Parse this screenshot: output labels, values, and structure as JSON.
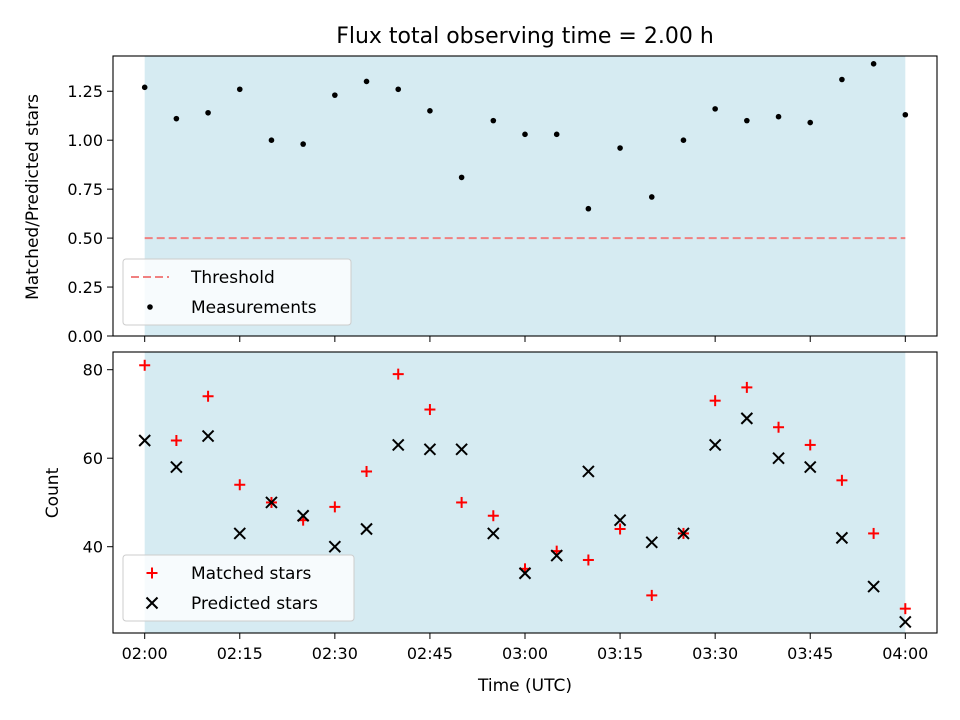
{
  "chart_data": [
    {
      "type": "scatter",
      "title": "Flux total observing time = 2.00 h",
      "xlabel": "",
      "ylabel": "Matched/Predicted stars",
      "ylim": [
        0,
        1.43
      ],
      "yticks": [
        0.0,
        0.25,
        0.5,
        0.75,
        1.0,
        1.25
      ],
      "ytick_labels": [
        "0.00",
        "0.25",
        "0.50",
        "0.75",
        "1.00",
        "1.25"
      ],
      "shaded_region": {
        "x_start": "02:00",
        "x_end": "04:00",
        "color": "#add8e6"
      },
      "threshold": {
        "name": "Threshold",
        "value": 0.5,
        "color": "#f08080",
        "style": "dashed"
      },
      "series": [
        {
          "name": "Measurements",
          "marker": "dot",
          "color": "#000000",
          "x": [
            "02:00",
            "02:05",
            "02:10",
            "02:15",
            "02:20",
            "02:25",
            "02:30",
            "02:35",
            "02:40",
            "02:45",
            "02:50",
            "02:55",
            "03:00",
            "03:05",
            "03:10",
            "03:15",
            "03:20",
            "03:25",
            "03:30",
            "03:35",
            "03:40",
            "03:45",
            "03:50",
            "03:55",
            "04:00"
          ],
          "values": [
            1.27,
            1.11,
            1.14,
            1.26,
            1.0,
            0.98,
            1.23,
            1.3,
            1.26,
            1.15,
            0.81,
            1.1,
            1.03,
            1.03,
            0.65,
            0.96,
            0.71,
            1.0,
            1.16,
            1.1,
            1.12,
            1.09,
            1.31,
            1.39,
            1.13
          ]
        }
      ],
      "legend": {
        "placement": "lower-left",
        "entries": [
          "Threshold",
          "Measurements"
        ]
      },
      "grid": false
    },
    {
      "type": "scatter",
      "title": "",
      "xlabel": "Time (UTC)",
      "ylabel": "Count",
      "ylim": [
        20.5,
        84
      ],
      "yticks": [
        40,
        60,
        80
      ],
      "ytick_labels": [
        "40",
        "60",
        "80"
      ],
      "xticks": [
        "02:00",
        "02:15",
        "02:30",
        "02:45",
        "03:00",
        "03:15",
        "03:30",
        "03:45",
        "04:00"
      ],
      "shaded_region": {
        "x_start": "02:00",
        "x_end": "04:00",
        "color": "#add8e6"
      },
      "x": [
        "02:00",
        "02:05",
        "02:10",
        "02:15",
        "02:20",
        "02:25",
        "02:30",
        "02:35",
        "02:40",
        "02:45",
        "02:50",
        "02:55",
        "03:00",
        "03:05",
        "03:10",
        "03:15",
        "03:20",
        "03:25",
        "03:30",
        "03:35",
        "03:40",
        "03:45",
        "03:50",
        "03:55",
        "04:00"
      ],
      "series": [
        {
          "name": "Matched stars",
          "marker": "plus",
          "color": "#ff0000",
          "values": [
            81,
            64,
            74,
            54,
            50,
            46,
            49,
            57,
            79,
            71,
            50,
            47,
            35,
            39,
            37,
            44,
            29,
            43,
            73,
            76,
            67,
            63,
            55,
            43,
            26
          ]
        },
        {
          "name": "Predicted stars",
          "marker": "x",
          "color": "#000000",
          "values": [
            64,
            58,
            65,
            43,
            50,
            47,
            40,
            44,
            63,
            62,
            62,
            43,
            34,
            38,
            57,
            46,
            41,
            43,
            63,
            69,
            60,
            58,
            42,
            31,
            23
          ]
        }
      ],
      "legend": {
        "placement": "lower-left",
        "entries": [
          "Matched stars",
          "Predicted stars"
        ]
      },
      "grid": false
    }
  ]
}
